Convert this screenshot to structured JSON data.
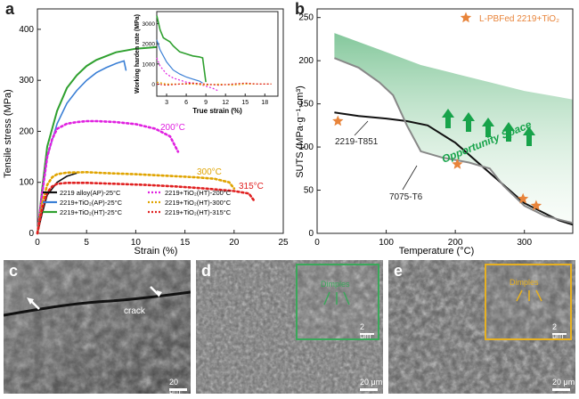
{
  "panels": {
    "a": "a",
    "b": "b",
    "c": "c",
    "d": "d",
    "e": "e"
  },
  "chart_a": {
    "type": "line",
    "xlabel": "Strain (%)",
    "ylabel": "Tensile stress (MPa)",
    "xlim": [
      0,
      25
    ],
    "ylim": [
      0,
      440
    ],
    "xticks": [
      "0",
      "5",
      "10",
      "15",
      "20",
      "25"
    ],
    "yticks": [
      "0",
      "100",
      "200",
      "300",
      "400"
    ],
    "annotations": [
      "200°C",
      "300°C",
      "315°C"
    ],
    "legend": [
      "2219 alloy(AP)-25°C",
      "2219+TiO₂(AP)-25°C",
      "2219+TiO₂(HT)-25°C",
      "2219+TiO₂(HT)-200°C",
      "2219+TiO₂(HT)-300°C",
      "2219+TiO₂(HT)-315°C"
    ],
    "colors": [
      "#111111",
      "#3a7fd5",
      "#2fa02f",
      "#e020e0",
      "#e0a400",
      "#e02020"
    ],
    "series": [
      {
        "name": "2219 alloy(AP)-25°C",
        "x": [
          0,
          0.5,
          1,
          2,
          3,
          4
        ],
        "y": [
          0,
          40,
          75,
          100,
          112,
          118
        ]
      },
      {
        "name": "2219+TiO₂(AP)-25°C",
        "x": [
          0,
          0.5,
          1,
          2,
          3,
          4,
          5,
          6,
          7,
          8,
          8.8,
          9
        ],
        "y": [
          0,
          80,
          150,
          215,
          255,
          280,
          300,
          315,
          325,
          333,
          338,
          320
        ]
      },
      {
        "name": "2219+TiO₂(HT)-25°C",
        "x": [
          0,
          0.5,
          1,
          2,
          3,
          4,
          5,
          6,
          8,
          10,
          12,
          13.5,
          14.2,
          14.8
        ],
        "y": [
          0,
          90,
          170,
          240,
          285,
          310,
          328,
          340,
          355,
          362,
          365,
          366,
          362,
          340
        ]
      },
      {
        "name": "2219+TiO₂(HT)-200°C",
        "x": [
          0,
          0.5,
          1,
          1.5,
          2,
          3,
          4,
          5,
          6,
          8,
          10,
          12,
          13.5,
          14.3
        ],
        "y": [
          0,
          80,
          150,
          185,
          205,
          215,
          218,
          220,
          220,
          218,
          214,
          205,
          190,
          160
        ]
      },
      {
        "name": "2219+TiO₂(HT)-300°C",
        "x": [
          0,
          0.5,
          1,
          1.5,
          2,
          3,
          5,
          7,
          10,
          13,
          16,
          18,
          19.5,
          20
        ],
        "y": [
          0,
          60,
          95,
          110,
          116,
          119,
          120,
          118,
          116,
          113,
          110,
          107,
          100,
          88
        ]
      },
      {
        "name": "2219+TiO₂(HT)-315°C",
        "x": [
          0,
          0.5,
          1,
          1.5,
          2,
          3,
          5,
          8,
          11,
          14,
          17,
          20,
          21.5,
          22
        ],
        "y": [
          0,
          50,
          80,
          92,
          97,
          99,
          99,
          97,
          95,
          92,
          88,
          83,
          78,
          65
        ]
      }
    ],
    "inset": {
      "xlabel": "True strain (%)",
      "ylabel": "Working harden rate (MPa)",
      "xticks": [
        "3",
        "6",
        "9",
        "12",
        "15",
        "18"
      ],
      "yticks": [
        "0",
        "1000",
        "2000",
        "3000"
      ],
      "xlim": [
        1.5,
        20
      ],
      "ylim": [
        -600,
        3600
      ],
      "series": [
        {
          "name": "2219+TiO₂(HT)-25°C",
          "x": [
            1.5,
            2,
            2.5,
            3,
            3.5,
            4,
            5,
            6,
            7,
            8,
            8.5,
            9
          ],
          "y": [
            3400,
            2700,
            2300,
            2200,
            2100,
            1900,
            1600,
            1500,
            1400,
            1350,
            1300,
            100
          ]
        },
        {
          "name": "2219+TiO₂(AP)-25°C",
          "x": [
            1.5,
            2,
            3,
            4,
            5,
            6,
            7,
            8,
            8.5
          ],
          "y": [
            2200,
            1700,
            1100,
            700,
            500,
            350,
            250,
            150,
            50
          ]
        },
        {
          "name": "2219+TiO₂(HT)-200°C",
          "x": [
            1.5,
            2,
            3,
            4,
            5,
            6,
            7,
            8,
            9,
            10,
            11
          ],
          "y": [
            1300,
            900,
            500,
            300,
            200,
            100,
            50,
            0,
            -100,
            -200,
            -350
          ]
        },
        {
          "name": "2219+TiO₂(HT)-300°C",
          "x": [
            1.5,
            3,
            5,
            7,
            9,
            11,
            13,
            15,
            17,
            19
          ],
          "y": [
            100,
            0,
            0,
            0,
            -50,
            0,
            -50,
            0,
            0,
            0
          ]
        },
        {
          "name": "2219+TiO₂(HT)-315°C",
          "x": [
            1.5,
            3,
            5,
            7,
            9,
            11,
            13,
            15,
            17,
            19
          ],
          "y": [
            0,
            -50,
            0,
            50,
            0,
            -50,
            0,
            50,
            0,
            0
          ]
        }
      ]
    }
  },
  "chart_b": {
    "type": "line",
    "xlabel": "Temperature (°C)",
    "ylabel": "SUTS (MPa·g⁻¹·cm³)",
    "xlim": [
      0,
      370
    ],
    "ylim": [
      0,
      260
    ],
    "xticks": [
      "0",
      "100",
      "200",
      "300"
    ],
    "yticks": [
      "0",
      "50",
      "100",
      "150",
      "200",
      "250"
    ],
    "legend": "L-PBFed 2219+TiO₂",
    "legend_color": "#e8843a",
    "labels": [
      "2219-T851",
      "7075-T6"
    ],
    "shaded_label": "Opportunity Space",
    "series": [
      {
        "name": "2219-T851",
        "x": [
          25,
          60,
          100,
          130,
          160,
          200,
          250,
          300,
          350,
          370
        ],
        "y": [
          140,
          136,
          133,
          130,
          125,
          105,
          70,
          35,
          15,
          10
        ]
      },
      {
        "name": "7075-T6",
        "x": [
          25,
          60,
          90,
          110,
          130,
          150,
          180,
          220,
          250,
          270,
          300,
          330,
          370
        ],
        "y": [
          203,
          192,
          175,
          160,
          125,
          95,
          88,
          82,
          75,
          55,
          32,
          20,
          12
        ]
      }
    ],
    "points": {
      "x": [
        30,
        203,
        298,
        317
      ],
      "y": [
        130,
        80,
        40,
        32
      ]
    },
    "shaded_top": {
      "x": [
        25,
        100,
        150,
        200,
        250,
        300,
        350,
        370
      ],
      "y": [
        232,
        210,
        195,
        185,
        175,
        165,
        158,
        155
      ]
    }
  },
  "sem": {
    "c_labels": [
      "crack"
    ],
    "d_labels": [
      "Dimples"
    ],
    "e_labels": [
      "Dimples"
    ],
    "scale_main": "20 μm",
    "scale_inset": "2 μm",
    "d_inset_color": "#3aa85a",
    "e_inset_color": "#e7b020"
  }
}
